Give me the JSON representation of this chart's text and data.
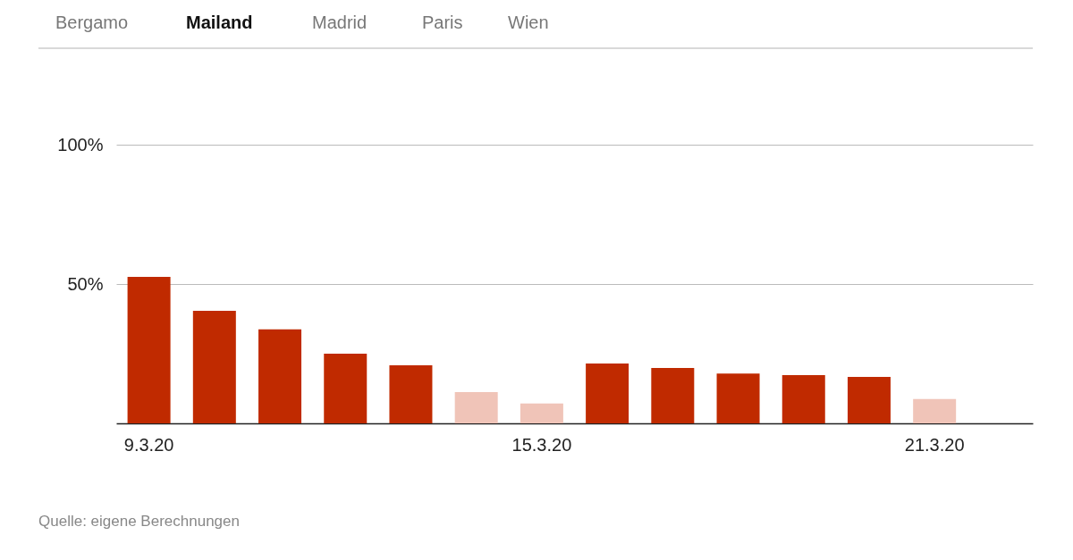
{
  "chart_data": {
    "type": "bar",
    "title": "Mailand",
    "annotations": [
      "Bergamo",
      "Madrid",
      "Paris",
      "Wien",
      "Quelle: eigene Berechnungen"
    ],
    "categories": [
      "9.3.20",
      null,
      null,
      null,
      null,
      null,
      "15.3.20",
      null,
      null,
      null,
      null,
      null,
      "21.3.20",
      null
    ],
    "values": [
      52.6,
      40.4,
      33.7,
      25,
      20.8,
      11.2,
      7.1,
      21.5,
      19.9,
      17.9,
      17.3,
      16.7,
      8.7,
      null
    ],
    "colors": [
      "#c02a00",
      "#c02a00",
      "#c02a00",
      "#c02a00",
      "#c02a00",
      "#f0c4b8",
      "#f0c4b8",
      "#c02a00",
      "#c02a00",
      "#c02a00",
      "#c02a00",
      "#c02a00",
      "#f0c4b8",
      "#c02a00"
    ],
    "ylim": [
      0,
      100
    ],
    "yticks": [
      {
        "value": 50,
        "label": "50%"
      },
      {
        "value": 100,
        "label": "100%"
      }
    ],
    "grid": "y"
  }
}
